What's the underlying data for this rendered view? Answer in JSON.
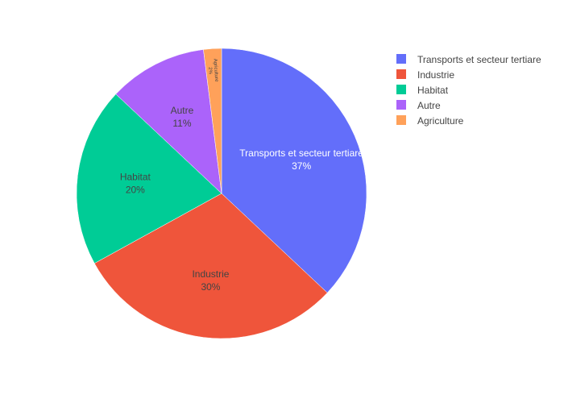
{
  "chart_data": {
    "type": "pie",
    "categories": [
      "Transports et secteur tertiare",
      "Industrie",
      "Habitat",
      "Autre",
      "Agriculture"
    ],
    "values": [
      37,
      30,
      20,
      11,
      2
    ],
    "percent_labels": [
      "37%",
      "30%",
      "20%",
      "11%",
      "2%"
    ],
    "colors": [
      "#636efa",
      "#ef553b",
      "#00cc96",
      "#ab63fa",
      "#ffa15a"
    ],
    "label_colors": [
      "#ffffff",
      "#444444",
      "#444444",
      "#444444",
      "#444444"
    ],
    "legend_placement": "top-right",
    "direction": "clockwise",
    "start_angle": "top"
  }
}
